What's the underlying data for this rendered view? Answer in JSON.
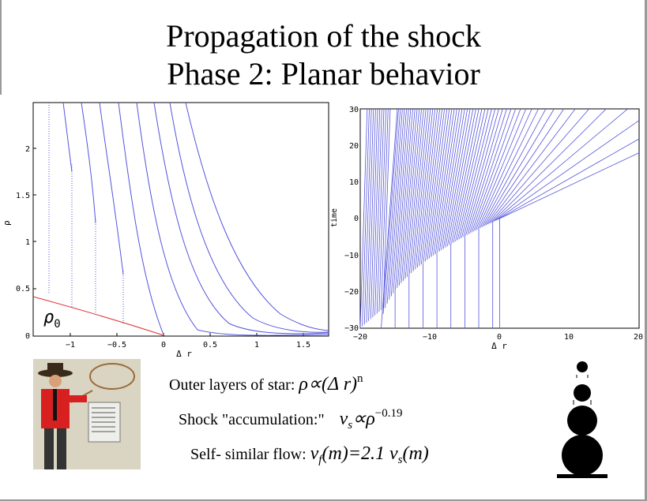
{
  "title_line1": "Propagation of the shock",
  "title_line2": "Phase 2: Planar behavior",
  "left_plot": {
    "ylabel": "ρ",
    "xlabel": "Δ r",
    "xticks": [
      "−1",
      "−0.5",
      "0",
      "0.5",
      "1",
      "1.5"
    ],
    "yticks": [
      "0",
      "0.5",
      "1",
      "1.5",
      "2"
    ],
    "annotation": "ρ",
    "annotation_sub": "0",
    "colors": {
      "profile": "#5555dd",
      "initial": "#e03030"
    }
  },
  "right_plot": {
    "ylabel": "time",
    "xlabel": "Δ r",
    "xticks": [
      "−20",
      "−10",
      "0",
      "10",
      "20"
    ],
    "yticks": [
      "−30",
      "−20",
      "−10",
      "0",
      "10",
      "20",
      "30"
    ],
    "colors": {
      "lines": "#5555dd"
    }
  },
  "formulas": {
    "f1_text": "Outer layers of star:",
    "f1_math": "ρ∝(Δ r)",
    "f1_exp": "n",
    "f2_text": "Shock \"accumulation:\"",
    "f2_math_v": "v",
    "f2_math_sub": "s",
    "f2_math_rest": "∝ρ",
    "f2_exp": "−0.19",
    "f3_text": "Self- similar flow:",
    "f3_math_v": "v",
    "f3_sub_f": "f",
    "f3_mid": "(m)=2.1 v",
    "f3_sub_s": "s",
    "f3_end": "(m)"
  },
  "photo_icon": "cowboy-with-lasso",
  "snowman_icon": "stacked-spheres"
}
